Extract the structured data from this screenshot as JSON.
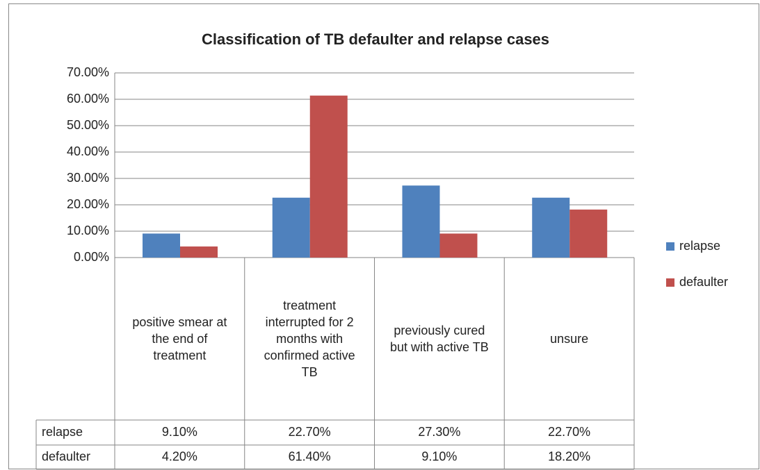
{
  "chart_data": {
    "type": "bar",
    "title": "Classification of TB defaulter and relapse cases",
    "categories": [
      "positive smear at the end of treatment",
      "treatment interrupted for 2 months with confirmed active TB",
      "previously cured but with active TB",
      "unsure"
    ],
    "series": [
      {
        "name": "relapse",
        "color": "#4f81bd",
        "values": [
          9.1,
          22.7,
          27.3,
          22.7
        ],
        "value_labels": [
          "9.10%",
          "22.70%",
          "27.30%",
          "22.70%"
        ]
      },
      {
        "name": "defaulter",
        "color": "#c0504d",
        "values": [
          4.2,
          61.4,
          9.1,
          18.2
        ],
        "value_labels": [
          "4.20%",
          "61.40%",
          "9.10%",
          "18.20%"
        ]
      }
    ],
    "ylim": [
      0,
      70
    ],
    "yticks": [
      {
        "value": 0,
        "label": "0.00%"
      },
      {
        "value": 10,
        "label": "10.00%"
      },
      {
        "value": 20,
        "label": "20.00%"
      },
      {
        "value": 30,
        "label": "30.00%"
      },
      {
        "value": 40,
        "label": "40.00%"
      },
      {
        "value": 50,
        "label": "50.00%"
      },
      {
        "value": 60,
        "label": "60.00%"
      },
      {
        "value": 70,
        "label": "70.00%"
      }
    ],
    "grid": true,
    "legend": "right"
  }
}
